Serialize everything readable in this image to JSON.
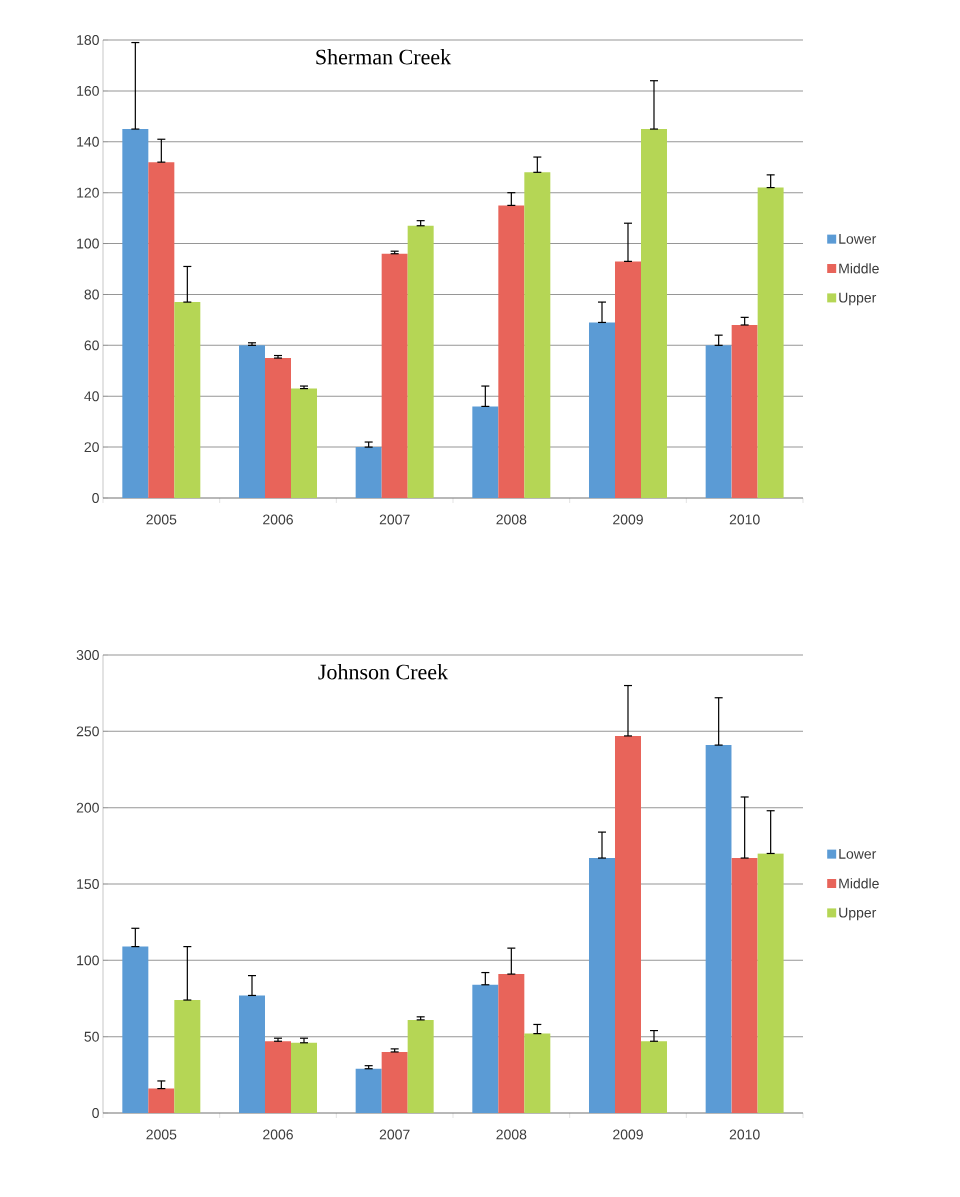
{
  "chart_data": [
    {
      "type": "bar",
      "title": "Sherman Creek",
      "categories": [
        "2005",
        "2006",
        "2007",
        "2008",
        "2009",
        "2010"
      ],
      "ylim": [
        0,
        180
      ],
      "yticks": [
        0,
        20,
        40,
        60,
        80,
        100,
        120,
        140,
        160,
        180
      ],
      "grid": "y",
      "legend": "right",
      "series": [
        {
          "name": "Lower",
          "color": "#5b9bd5",
          "values": [
            145,
            60,
            20,
            36,
            69,
            60
          ],
          "errors": [
            [
              145,
              179
            ],
            [
              60,
              61
            ],
            [
              20,
              22
            ],
            [
              36,
              44
            ],
            [
              69,
              77
            ],
            [
              60,
              64
            ]
          ]
        },
        {
          "name": "Middle",
          "color": "#e8645a",
          "values": [
            132,
            55,
            96,
            115,
            93,
            68
          ],
          "errors": [
            [
              132,
              141
            ],
            [
              55,
              56
            ],
            [
              96,
              97
            ],
            [
              115,
              120
            ],
            [
              93,
              108
            ],
            [
              68,
              71
            ]
          ]
        },
        {
          "name": "Upper",
          "color": "#b5d655",
          "values": [
            77,
            43,
            107,
            128,
            145,
            122
          ],
          "errors": [
            [
              77,
              91
            ],
            [
              43,
              44
            ],
            [
              107,
              109
            ],
            [
              128,
              134
            ],
            [
              145,
              164
            ],
            [
              122,
              127
            ]
          ]
        }
      ]
    },
    {
      "type": "bar",
      "title": "Johnson Creek",
      "categories": [
        "2005",
        "2006",
        "2007",
        "2008",
        "2009",
        "2010"
      ],
      "ylim": [
        0,
        300
      ],
      "yticks": [
        0,
        50,
        100,
        150,
        200,
        250,
        300
      ],
      "grid": "y",
      "legend": "right",
      "series": [
        {
          "name": "Lower",
          "color": "#5b9bd5",
          "values": [
            109,
            77,
            29,
            84,
            167,
            241
          ],
          "errors": [
            [
              109,
              121
            ],
            [
              77,
              90
            ],
            [
              29,
              31
            ],
            [
              84,
              92
            ],
            [
              167,
              184
            ],
            [
              241,
              272
            ]
          ]
        },
        {
          "name": "Middle",
          "color": "#e8645a",
          "values": [
            16,
            47,
            40,
            91,
            247,
            167
          ],
          "errors": [
            [
              16,
              21
            ],
            [
              47,
              49
            ],
            [
              40,
              42
            ],
            [
              91,
              108
            ],
            [
              247,
              280
            ],
            [
              167,
              207
            ]
          ]
        },
        {
          "name": "Upper",
          "color": "#b5d655",
          "values": [
            74,
            46,
            61,
            52,
            47,
            170
          ],
          "errors": [
            [
              74,
              109
            ],
            [
              46,
              49
            ],
            [
              61,
              63
            ],
            [
              52,
              58
            ],
            [
              47,
              54
            ],
            [
              170,
              198
            ]
          ]
        }
      ]
    }
  ]
}
